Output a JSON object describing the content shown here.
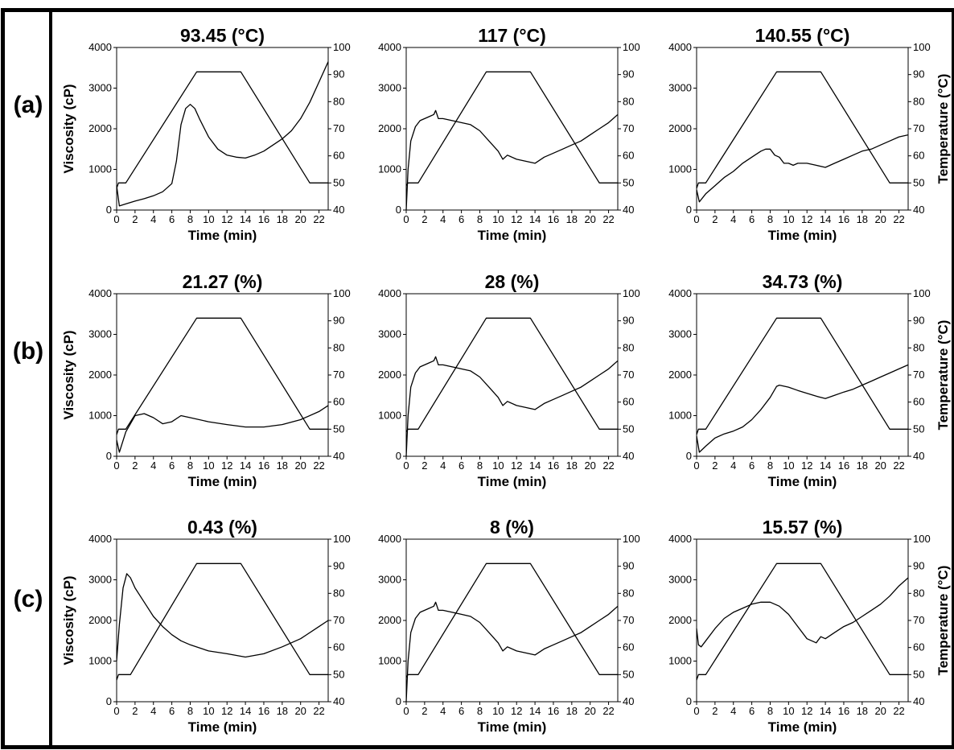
{
  "row_labels": [
    "(a)",
    "(b)",
    "(c)"
  ],
  "chart_data": [
    {
      "type": "line",
      "title": "93.45 (°C)",
      "xlabel": "Time (min)",
      "ylabel": "Viscosity (cP)",
      "y2label": "",
      "xlim": [
        0,
        23
      ],
      "ylim": [
        0,
        4000
      ],
      "y2lim": [
        40,
        100
      ],
      "xticks": [
        "0",
        "2",
        "4",
        "6",
        "8",
        "10",
        "12",
        "14",
        "16",
        "18",
        "20",
        "22"
      ],
      "yticks": [
        "0",
        "1000",
        "2000",
        "3000",
        "4000"
      ],
      "y2ticks": [
        "40",
        "50",
        "60",
        "70",
        "80",
        "90",
        "100"
      ],
      "series": [
        {
          "axis": "left",
          "x": [
            0,
            0.3,
            1,
            2,
            3,
            4,
            5,
            6,
            6.5,
            7,
            7.5,
            8,
            8.5,
            9,
            10,
            11,
            12,
            13,
            14,
            15,
            16,
            17,
            18,
            19,
            20,
            21,
            22,
            23
          ],
          "y": [
            600,
            100,
            150,
            220,
            280,
            350,
            450,
            650,
            1200,
            2100,
            2500,
            2600,
            2500,
            2250,
            1800,
            1500,
            1350,
            1300,
            1280,
            1350,
            1450,
            1600,
            1750,
            1950,
            2250,
            2650,
            3150,
            3650
          ]
        },
        {
          "axis": "right",
          "x": [
            0,
            0.2,
            1,
            8.7,
            13.5,
            21,
            23
          ],
          "y": [
            48,
            50,
            50,
            91,
            91,
            50,
            50
          ]
        }
      ]
    },
    {
      "type": "line",
      "title": "117 (°C)",
      "xlabel": "Time (min)",
      "ylabel": "",
      "y2label": "",
      "xlim": [
        0,
        23
      ],
      "ylim": [
        0,
        4000
      ],
      "y2lim": [
        40,
        100
      ],
      "xticks": [
        "0",
        "2",
        "4",
        "6",
        "8",
        "10",
        "12",
        "14",
        "16",
        "18",
        "20",
        "22"
      ],
      "yticks": [
        "0",
        "1000",
        "2000",
        "3000",
        "4000"
      ],
      "y2ticks": [
        "40",
        "50",
        "60",
        "70",
        "80",
        "90",
        "100"
      ],
      "series": [
        {
          "axis": "left",
          "x": [
            0,
            0.2,
            0.5,
            1,
            1.5,
            2,
            2.5,
            3,
            3.2,
            3.5,
            4,
            5,
            6,
            7,
            8,
            9,
            10,
            10.5,
            11,
            12,
            13,
            14,
            15,
            16,
            17,
            18,
            19,
            20,
            21,
            22,
            23
          ],
          "y": [
            0,
            1000,
            1700,
            2050,
            2200,
            2250,
            2300,
            2350,
            2450,
            2250,
            2250,
            2200,
            2150,
            2100,
            1950,
            1700,
            1450,
            1250,
            1350,
            1250,
            1200,
            1150,
            1300,
            1400,
            1500,
            1600,
            1700,
            1850,
            2000,
            2150,
            2350
          ]
        },
        {
          "axis": "right",
          "x": [
            0,
            0.2,
            1.3,
            8.7,
            13.5,
            21,
            23
          ],
          "y": [
            49,
            50,
            50,
            91,
            91,
            50,
            50
          ]
        }
      ]
    },
    {
      "type": "line",
      "title": "140.55 (°C)",
      "xlabel": "Time (min)",
      "ylabel": "",
      "y2label": "Temperature (°C)",
      "xlim": [
        0,
        23
      ],
      "ylim": [
        0,
        4000
      ],
      "y2lim": [
        40,
        100
      ],
      "xticks": [
        "0",
        "2",
        "4",
        "6",
        "8",
        "10",
        "12",
        "14",
        "16",
        "18",
        "20",
        "22"
      ],
      "yticks": [
        "0",
        "1000",
        "2000",
        "3000",
        "4000"
      ],
      "y2ticks": [
        "40",
        "50",
        "60",
        "70",
        "80",
        "90",
        "100"
      ],
      "series": [
        {
          "axis": "left",
          "x": [
            0,
            0.3,
            1,
            2,
            3,
            4,
            5,
            6,
            7,
            7.5,
            8,
            8.5,
            9,
            9.5,
            10,
            10.5,
            11,
            12,
            13,
            14,
            15,
            16,
            17,
            18,
            19,
            20,
            21,
            22,
            23
          ],
          "y": [
            500,
            200,
            400,
            600,
            800,
            950,
            1150,
            1300,
            1450,
            1500,
            1500,
            1350,
            1300,
            1150,
            1150,
            1100,
            1150,
            1150,
            1100,
            1050,
            1150,
            1250,
            1350,
            1450,
            1500,
            1600,
            1700,
            1800,
            1850
          ]
        },
        {
          "axis": "right",
          "x": [
            0,
            0.2,
            1,
            8.7,
            13.5,
            21,
            23
          ],
          "y": [
            48,
            50,
            50,
            91,
            91,
            50,
            50
          ]
        }
      ]
    },
    {
      "type": "line",
      "title": "21.27 (%)",
      "xlabel": "Time (min)",
      "ylabel": "Viscosity (cP)",
      "y2label": "",
      "xlim": [
        0,
        23
      ],
      "ylim": [
        0,
        4000
      ],
      "y2lim": [
        40,
        100
      ],
      "xticks": [
        "0",
        "2",
        "4",
        "6",
        "8",
        "10",
        "12",
        "14",
        "16",
        "18",
        "20",
        "22"
      ],
      "yticks": [
        "0",
        "1000",
        "2000",
        "3000",
        "4000"
      ],
      "y2ticks": [
        "40",
        "50",
        "60",
        "70",
        "80",
        "90",
        "100"
      ],
      "series": [
        {
          "axis": "left",
          "x": [
            0,
            0.3,
            1,
            2,
            3,
            4,
            5,
            6,
            7,
            8,
            10,
            12,
            14,
            16,
            18,
            20,
            22,
            23
          ],
          "y": [
            400,
            100,
            600,
            1000,
            1050,
            950,
            800,
            850,
            1000,
            950,
            850,
            780,
            720,
            720,
            780,
            900,
            1100,
            1250
          ]
        },
        {
          "axis": "right",
          "x": [
            0,
            0.2,
            1,
            8.7,
            13.5,
            21,
            23
          ],
          "y": [
            48,
            50,
            50,
            91,
            91,
            50,
            50
          ]
        }
      ]
    },
    {
      "type": "line",
      "title": "28 (%)",
      "xlabel": "Time (min)",
      "ylabel": "",
      "y2label": "",
      "xlim": [
        0,
        23
      ],
      "ylim": [
        0,
        4000
      ],
      "y2lim": [
        40,
        100
      ],
      "xticks": [
        "0",
        "2",
        "4",
        "6",
        "8",
        "10",
        "12",
        "14",
        "16",
        "18",
        "20",
        "22"
      ],
      "yticks": [
        "0",
        "1000",
        "2000",
        "3000",
        "4000"
      ],
      "y2ticks": [
        "40",
        "50",
        "60",
        "70",
        "80",
        "90",
        "100"
      ],
      "series": [
        {
          "axis": "left",
          "x": [
            0,
            0.2,
            0.5,
            1,
            1.5,
            2,
            2.5,
            3,
            3.2,
            3.5,
            4,
            5,
            6,
            7,
            8,
            9,
            10,
            10.5,
            11,
            12,
            13,
            14,
            15,
            16,
            17,
            18,
            19,
            20,
            21,
            22,
            23
          ],
          "y": [
            0,
            1000,
            1700,
            2050,
            2200,
            2250,
            2300,
            2350,
            2450,
            2250,
            2250,
            2200,
            2150,
            2100,
            1950,
            1700,
            1450,
            1250,
            1350,
            1250,
            1200,
            1150,
            1300,
            1400,
            1500,
            1600,
            1700,
            1850,
            2000,
            2150,
            2350
          ]
        },
        {
          "axis": "right",
          "x": [
            0,
            0.2,
            1.3,
            8.7,
            13.5,
            21,
            23
          ],
          "y": [
            49,
            50,
            50,
            91,
            91,
            50,
            50
          ]
        }
      ]
    },
    {
      "type": "line",
      "title": "34.73 (%)",
      "xlabel": "Time (min)",
      "ylabel": "",
      "y2label": "Temperature (°C)",
      "xlim": [
        0,
        23
      ],
      "ylim": [
        0,
        4000
      ],
      "y2lim": [
        40,
        100
      ],
      "xticks": [
        "0",
        "2",
        "4",
        "6",
        "8",
        "10",
        "12",
        "14",
        "16",
        "18",
        "20",
        "22"
      ],
      "yticks": [
        "0",
        "1000",
        "2000",
        "3000",
        "4000"
      ],
      "y2ticks": [
        "40",
        "50",
        "60",
        "70",
        "80",
        "90",
        "100"
      ],
      "series": [
        {
          "axis": "left",
          "x": [
            0,
            0.3,
            1,
            2,
            3,
            4,
            5,
            6,
            7,
            8,
            8.7,
            9,
            10,
            11,
            12,
            13,
            14,
            15,
            16,
            17,
            18,
            19,
            20,
            21,
            22,
            23
          ],
          "y": [
            500,
            100,
            250,
            450,
            550,
            620,
            720,
            900,
            1150,
            1450,
            1720,
            1750,
            1700,
            1620,
            1550,
            1480,
            1420,
            1500,
            1580,
            1650,
            1750,
            1850,
            1950,
            2050,
            2150,
            2250
          ]
        },
        {
          "axis": "right",
          "x": [
            0,
            0.2,
            1,
            8.7,
            13.5,
            21,
            23
          ],
          "y": [
            48,
            50,
            50,
            91,
            91,
            50,
            50
          ]
        }
      ]
    },
    {
      "type": "line",
      "title": "0.43 (%)",
      "xlabel": "Time (min)",
      "ylabel": "Viscosity (cP)",
      "y2label": "",
      "xlim": [
        0,
        23
      ],
      "ylim": [
        0,
        4000
      ],
      "y2lim": [
        40,
        100
      ],
      "xticks": [
        "0",
        "2",
        "4",
        "6",
        "8",
        "10",
        "12",
        "14",
        "16",
        "18",
        "20",
        "22"
      ],
      "yticks": [
        "0",
        "1000",
        "2000",
        "3000",
        "4000"
      ],
      "y2ticks": [
        "40",
        "50",
        "60",
        "70",
        "80",
        "90",
        "100"
      ],
      "series": [
        {
          "axis": "left",
          "x": [
            0,
            0.3,
            0.7,
            1.1,
            1.5,
            2,
            3,
            4,
            5,
            6,
            7,
            8,
            10,
            12,
            14,
            16,
            18,
            20,
            22,
            23
          ],
          "y": [
            1000,
            1900,
            2800,
            3150,
            3050,
            2800,
            2450,
            2100,
            1850,
            1650,
            1500,
            1400,
            1250,
            1180,
            1100,
            1180,
            1350,
            1550,
            1850,
            2000
          ]
        },
        {
          "axis": "right",
          "x": [
            0,
            0.2,
            1.5,
            8.7,
            13.5,
            21,
            23
          ],
          "y": [
            48,
            50,
            50,
            91,
            91,
            50,
            50
          ]
        }
      ]
    },
    {
      "type": "line",
      "title": "8 (%)",
      "xlabel": "Time (min)",
      "ylabel": "",
      "y2label": "",
      "xlim": [
        0,
        23
      ],
      "ylim": [
        0,
        4000
      ],
      "y2lim": [
        40,
        100
      ],
      "xticks": [
        "0",
        "2",
        "4",
        "6",
        "8",
        "10",
        "12",
        "14",
        "16",
        "18",
        "20",
        "22"
      ],
      "yticks": [
        "0",
        "1000",
        "2000",
        "3000",
        "4000"
      ],
      "y2ticks": [
        "40",
        "50",
        "60",
        "70",
        "80",
        "90",
        "100"
      ],
      "series": [
        {
          "axis": "left",
          "x": [
            0,
            0.2,
            0.5,
            1,
            1.5,
            2,
            2.5,
            3,
            3.2,
            3.5,
            4,
            5,
            6,
            7,
            8,
            9,
            10,
            10.5,
            11,
            12,
            13,
            14,
            15,
            16,
            17,
            18,
            19,
            20,
            21,
            22,
            23
          ],
          "y": [
            0,
            1000,
            1700,
            2050,
            2200,
            2250,
            2300,
            2350,
            2450,
            2250,
            2250,
            2200,
            2150,
            2100,
            1950,
            1700,
            1450,
            1250,
            1350,
            1250,
            1200,
            1150,
            1300,
            1400,
            1500,
            1600,
            1700,
            1850,
            2000,
            2150,
            2350
          ]
        },
        {
          "axis": "right",
          "x": [
            0,
            0.2,
            1.3,
            8.7,
            13.5,
            21,
            23
          ],
          "y": [
            49,
            50,
            50,
            91,
            91,
            50,
            50
          ]
        }
      ]
    },
    {
      "type": "line",
      "title": "15.57 (%)",
      "xlabel": "Time (min)",
      "ylabel": "",
      "y2label": "Temperature (°C)",
      "xlim": [
        0,
        23
      ],
      "ylim": [
        0,
        4000
      ],
      "y2lim": [
        40,
        100
      ],
      "xticks": [
        "0",
        "2",
        "4",
        "6",
        "8",
        "10",
        "12",
        "14",
        "16",
        "18",
        "20",
        "22"
      ],
      "yticks": [
        "0",
        "1000",
        "2000",
        "3000",
        "4000"
      ],
      "y2ticks": [
        "40",
        "50",
        "60",
        "70",
        "80",
        "90",
        "100"
      ],
      "series": [
        {
          "axis": "left",
          "x": [
            0,
            0.2,
            0.5,
            1,
            2,
            3,
            4,
            5,
            6,
            7,
            8,
            9,
            10,
            11,
            12,
            13,
            13.5,
            14,
            15,
            16,
            17,
            18,
            19,
            20,
            21,
            22,
            23
          ],
          "y": [
            1800,
            1400,
            1350,
            1500,
            1800,
            2050,
            2200,
            2300,
            2400,
            2450,
            2450,
            2350,
            2150,
            1850,
            1550,
            1450,
            1600,
            1550,
            1700,
            1850,
            1950,
            2100,
            2250,
            2400,
            2600,
            2850,
            3050
          ]
        },
        {
          "axis": "right",
          "x": [
            0,
            0.2,
            1,
            8.7,
            13.5,
            21,
            23
          ],
          "y": [
            48,
            50,
            50,
            91,
            91,
            50,
            50
          ]
        }
      ]
    }
  ]
}
